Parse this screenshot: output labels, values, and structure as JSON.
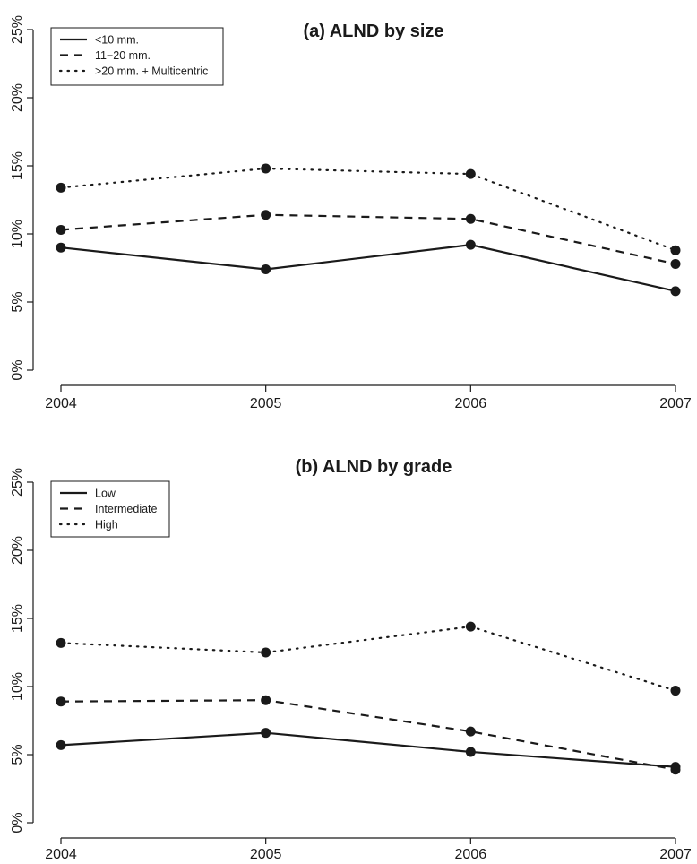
{
  "colors": {
    "ink": "#1a1a1a",
    "background": "#ffffff"
  },
  "chart_data": [
    {
      "type": "line",
      "title": "(a) ALND by size",
      "xlabel": "",
      "ylabel": "",
      "x": [
        2004,
        2005,
        2006,
        2007
      ],
      "x_tick_labels": [
        "2004",
        "2005",
        "2006",
        "2007"
      ],
      "ylim": [
        0,
        25
      ],
      "y_ticks": [
        0,
        5,
        10,
        15,
        20,
        25
      ],
      "y_tick_labels": [
        "0%",
        "5%",
        "10%",
        "15%",
        "20%",
        "25%"
      ],
      "grid": false,
      "legend_position": "top-left",
      "series": [
        {
          "name": "<10 mm.",
          "line_style": "solid",
          "values": [
            9.0,
            7.4,
            9.2,
            5.8
          ]
        },
        {
          "name": "11−20 mm.",
          "line_style": "dashed",
          "values": [
            10.3,
            11.4,
            11.1,
            7.8
          ]
        },
        {
          "name": ">20 mm. + Multicentric",
          "line_style": "dotted",
          "values": [
            13.4,
            14.8,
            14.4,
            8.8
          ]
        }
      ]
    },
    {
      "type": "line",
      "title": "(b) ALND by grade",
      "xlabel": "",
      "ylabel": "",
      "x": [
        2004,
        2005,
        2006,
        2007
      ],
      "x_tick_labels": [
        "2004",
        "2005",
        "2006",
        "2007"
      ],
      "ylim": [
        0,
        25
      ],
      "y_ticks": [
        0,
        5,
        10,
        15,
        20,
        25
      ],
      "y_tick_labels": [
        "0%",
        "5%",
        "10%",
        "15%",
        "20%",
        "25%"
      ],
      "grid": false,
      "legend_position": "top-left",
      "series": [
        {
          "name": "Low",
          "line_style": "solid",
          "values": [
            5.7,
            6.6,
            5.2,
            4.1
          ]
        },
        {
          "name": "Intermediate",
          "line_style": "dashed",
          "values": [
            8.9,
            9.0,
            6.7,
            3.9
          ]
        },
        {
          "name": "High",
          "line_style": "dotted",
          "values": [
            13.2,
            12.5,
            14.4,
            9.7
          ]
        }
      ]
    }
  ]
}
